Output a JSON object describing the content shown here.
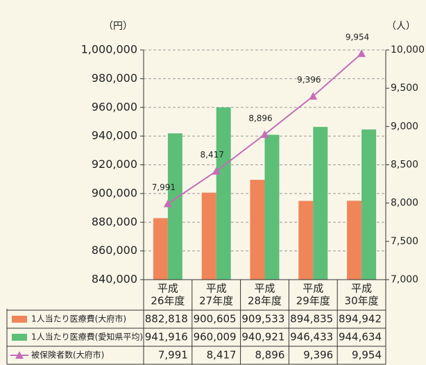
{
  "chart_data": {
    "type": "bar_line",
    "y_unit": "（円）",
    "y2_unit": "（人）",
    "categories": [
      [
        "平成",
        "26年度"
      ],
      [
        "平成",
        "27年度"
      ],
      [
        "平成",
        "28年度"
      ],
      [
        "平成",
        "29年度"
      ],
      [
        "平成",
        "30年度"
      ]
    ],
    "series": [
      {
        "name": "1人当たり医療費(大府市)",
        "color": "#ef8559",
        "type": "bar",
        "values": [
          882818,
          900605,
          909533,
          894835,
          894942
        ],
        "value_labels": [
          "882,818",
          "900,605",
          "909,533",
          "894,835",
          "894,942"
        ]
      },
      {
        "name": "1人当たり医療費(愛知県平均)",
        "color": "#5dbe78",
        "type": "bar",
        "values": [
          941916,
          960009,
          940921,
          946433,
          944634
        ],
        "value_labels": [
          "941,916",
          "960,009",
          "940,921",
          "946,433",
          "944,634"
        ]
      },
      {
        "name": "被保険者数(大府市)",
        "color": "#c56cb8",
        "type": "line",
        "axis": "y2",
        "values": [
          7991,
          8417,
          8896,
          9396,
          9954
        ],
        "value_labels": [
          "7,991",
          "8,417",
          "8,896",
          "9,396",
          "9,954"
        ]
      }
    ],
    "ylim": [
      840000,
      1000000
    ],
    "yticks": [
      {
        "value": 840000,
        "label": "840,000"
      },
      {
        "value": 860000,
        "label": "860,000"
      },
      {
        "value": 880000,
        "label": "880,000"
      },
      {
        "value": 900000,
        "label": "900,000"
      },
      {
        "value": 920000,
        "label": "920,000"
      },
      {
        "value": 940000,
        "label": "940,000"
      },
      {
        "value": 960000,
        "label": "960,000"
      },
      {
        "value": 980000,
        "label": "980,000"
      },
      {
        "value": 1000000,
        "label": "1,000,000"
      }
    ],
    "y2lim": [
      7000,
      10000
    ],
    "y2ticks": [
      {
        "value": 7000,
        "label": "7,000"
      },
      {
        "value": 7500,
        "label": "7,500"
      },
      {
        "value": 8000,
        "label": "8,000"
      },
      {
        "value": 8500,
        "label": "8,500"
      },
      {
        "value": 9000,
        "label": "9,000"
      },
      {
        "value": 9500,
        "label": "9,500"
      },
      {
        "value": 10000,
        "label": "10,000"
      }
    ],
    "grid": true
  }
}
